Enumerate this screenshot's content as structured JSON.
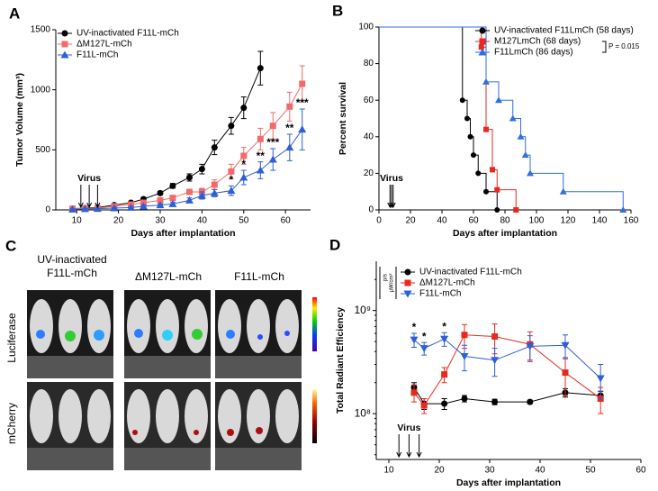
{
  "chart_data": [
    {
      "panel": "A",
      "type": "line",
      "xlabel": "Days after implantation",
      "ylabel": "Tumor Volume (mm³)",
      "xlim": [
        5,
        66
      ],
      "xticks": [
        10,
        20,
        30,
        40,
        50,
        60
      ],
      "ylim": [
        0,
        1500
      ],
      "yticks": [
        0,
        500,
        1000,
        1500
      ],
      "legend": "upper left",
      "series": [
        {
          "name": "UV-inactivated F11L-mCh",
          "color": "#000000",
          "marker": "circle",
          "x": [
            9,
            12,
            15,
            19,
            23,
            26,
            30,
            33,
            37,
            40,
            43,
            47,
            50,
            54
          ],
          "values": [
            10,
            15,
            20,
            40,
            60,
            90,
            140,
            200,
            270,
            340,
            520,
            700,
            850,
            1180
          ],
          "errors": [
            5,
            5,
            5,
            10,
            10,
            15,
            15,
            20,
            30,
            40,
            60,
            70,
            90,
            140
          ]
        },
        {
          "name": "ΔM127L-mCh",
          "color": "#f26b6b",
          "marker": "square",
          "x": [
            9,
            12,
            15,
            19,
            23,
            26,
            30,
            33,
            37,
            40,
            43,
            47,
            50,
            54,
            57,
            61,
            64
          ],
          "values": [
            10,
            12,
            15,
            30,
            45,
            60,
            80,
            100,
            150,
            150,
            210,
            320,
            450,
            590,
            700,
            860,
            1050
          ],
          "errors": [
            5,
            5,
            5,
            5,
            10,
            10,
            15,
            15,
            20,
            30,
            40,
            60,
            70,
            90,
            110,
            120,
            150
          ]
        },
        {
          "name": "F11L-mCh",
          "color": "#2f5fd6",
          "marker": "triangle",
          "x": [
            9,
            12,
            15,
            19,
            23,
            26,
            30,
            33,
            37,
            40,
            43,
            47,
            50,
            54,
            57,
            61,
            64
          ],
          "values": [
            5,
            8,
            10,
            15,
            20,
            30,
            40,
            50,
            80,
            120,
            140,
            160,
            270,
            330,
            420,
            520,
            670
          ],
          "errors": [
            5,
            5,
            5,
            5,
            5,
            10,
            10,
            15,
            20,
            30,
            30,
            40,
            60,
            70,
            90,
            110,
            170
          ]
        }
      ],
      "annotations": [
        {
          "x": 47,
          "text": "*"
        },
        {
          "x": 50,
          "text": "*"
        },
        {
          "x": 54,
          "text": "**"
        },
        {
          "x": 57,
          "text": "***"
        },
        {
          "x": 61,
          "text": "**"
        },
        {
          "x": 64,
          "text": "***"
        }
      ],
      "virus_label": "Virus",
      "virus_days": [
        11,
        13,
        15
      ]
    },
    {
      "panel": "B",
      "type": "survival",
      "xlabel": "Days after implantation",
      "ylabel": "Percent survival",
      "xlim": [
        0,
        160
      ],
      "xticks": [
        0,
        20,
        40,
        60,
        80,
        100,
        120,
        140,
        160
      ],
      "ylim": [
        0,
        100
      ],
      "yticks": [
        0,
        20,
        40,
        60,
        80,
        100
      ],
      "legend": "upper right",
      "series": [
        {
          "name": "UV-inactivated F11LmCh  (58 days)",
          "color": "#000000",
          "marker": "circle",
          "x": [
            0,
            53,
            56,
            58,
            60,
            63,
            68,
            75
          ],
          "values": [
            100,
            60,
            50,
            40,
            30,
            20,
            10,
            0
          ]
        },
        {
          "name": "M127LmCh (68 days)",
          "color": "#e8291f",
          "marker": "square",
          "x": [
            0,
            65,
            68,
            72,
            75,
            87
          ],
          "values": [
            100,
            89,
            44,
            22,
            11,
            0
          ]
        },
        {
          "name": "F11LmCh (86 days)",
          "color": "#2f6fe0",
          "marker": "triangle",
          "x": [
            0,
            68,
            76,
            85,
            90,
            93,
            96,
            117,
            155
          ],
          "values": [
            100,
            70,
            60,
            50,
            40,
            30,
            20,
            10,
            0
          ]
        }
      ],
      "p_value": "P = 0.015",
      "virus_label": "Virus",
      "virus_days": [
        7,
        8,
        9
      ]
    },
    {
      "panel": "D",
      "type": "line",
      "xlabel": "Days after implantation",
      "ylabel": "Total Radiant Efficiency",
      "xlim": [
        7.5,
        60
      ],
      "xticks": [
        10,
        20,
        30,
        40,
        50,
        60
      ],
      "yscale": "log",
      "ylim": [
        36000000,
        3000000000
      ],
      "yticks": [
        {
          "value": 100000000,
          "label": "10⁸"
        },
        {
          "value": 1000000000,
          "label": "10⁹"
        }
      ],
      "legend": "upper left",
      "units": [
        "p/s",
        "µW/cm²"
      ],
      "series": [
        {
          "name": "UV-inactivated F11L-mCh",
          "color": "#000000",
          "marker": "circle",
          "x": [
            15,
            17,
            21,
            25,
            31,
            38,
            45,
            52
          ],
          "values": [
            180000000,
            125000000,
            125000000,
            140000000,
            130000000,
            130000000,
            160000000,
            150000000
          ],
          "errors": [
            20000000,
            15000000,
            15000000,
            10000000,
            8000000,
            5000000,
            15000000,
            15000000
          ]
        },
        {
          "name": "ΔM127L-mCh",
          "color": "#e8291f",
          "marker": "square",
          "x": [
            15,
            17,
            21,
            25,
            31,
            38,
            45,
            52
          ],
          "values": [
            160000000,
            120000000,
            240000000,
            580000000,
            560000000,
            470000000,
            250000000,
            140000000
          ],
          "errors": [
            30000000,
            20000000,
            40000000,
            150000000,
            180000000,
            150000000,
            100000000,
            40000000
          ]
        },
        {
          "name": "F11L-mCh",
          "color": "#2f5fd6",
          "marker": "triangle-down",
          "x": [
            15,
            17,
            21,
            25,
            31,
            38,
            45,
            52
          ],
          "values": [
            520000000,
            430000000,
            530000000,
            360000000,
            330000000,
            450000000,
            460000000,
            220000000
          ],
          "errors": [
            80000000,
            60000000,
            80000000,
            100000000,
            100000000,
            120000000,
            120000000,
            80000000
          ]
        }
      ],
      "annotations": [
        {
          "x": 15,
          "text": "*"
        },
        {
          "x": 17,
          "text": "*"
        },
        {
          "x": 21,
          "text": "*"
        }
      ],
      "virus_label": "Virus",
      "virus_days": [
        12,
        14,
        16
      ]
    }
  ],
  "image_panel": {
    "panel": "C",
    "columns": [
      "UV-inactivated\nF11L-mCh",
      "ΔM127L-mCh",
      "F11L-mCh"
    ],
    "rows": [
      "Luciferase",
      "mCherry"
    ]
  }
}
